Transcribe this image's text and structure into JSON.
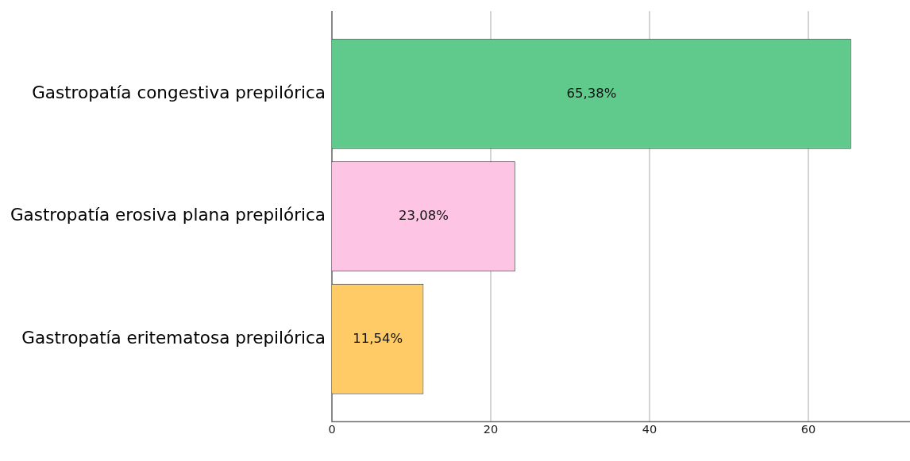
{
  "chart_data": {
    "type": "bar",
    "orientation": "horizontal",
    "categories": [
      "Gastropatía congestiva prepilórica",
      "Gastropatía erosiva plana prepilórica",
      "Gastropatía eritematosa prepilórica"
    ],
    "values": [
      65.38,
      23.08,
      11.54
    ],
    "colors": [
      "#5fca8b",
      "#fec4e3",
      "#fecb67"
    ],
    "value_labels": [
      "65,38%",
      "23,08%",
      "11,54%"
    ],
    "xlim": [
      0,
      72.8
    ],
    "xticks": [
      0,
      20,
      40,
      60
    ],
    "grid": "x",
    "legend": false
  }
}
